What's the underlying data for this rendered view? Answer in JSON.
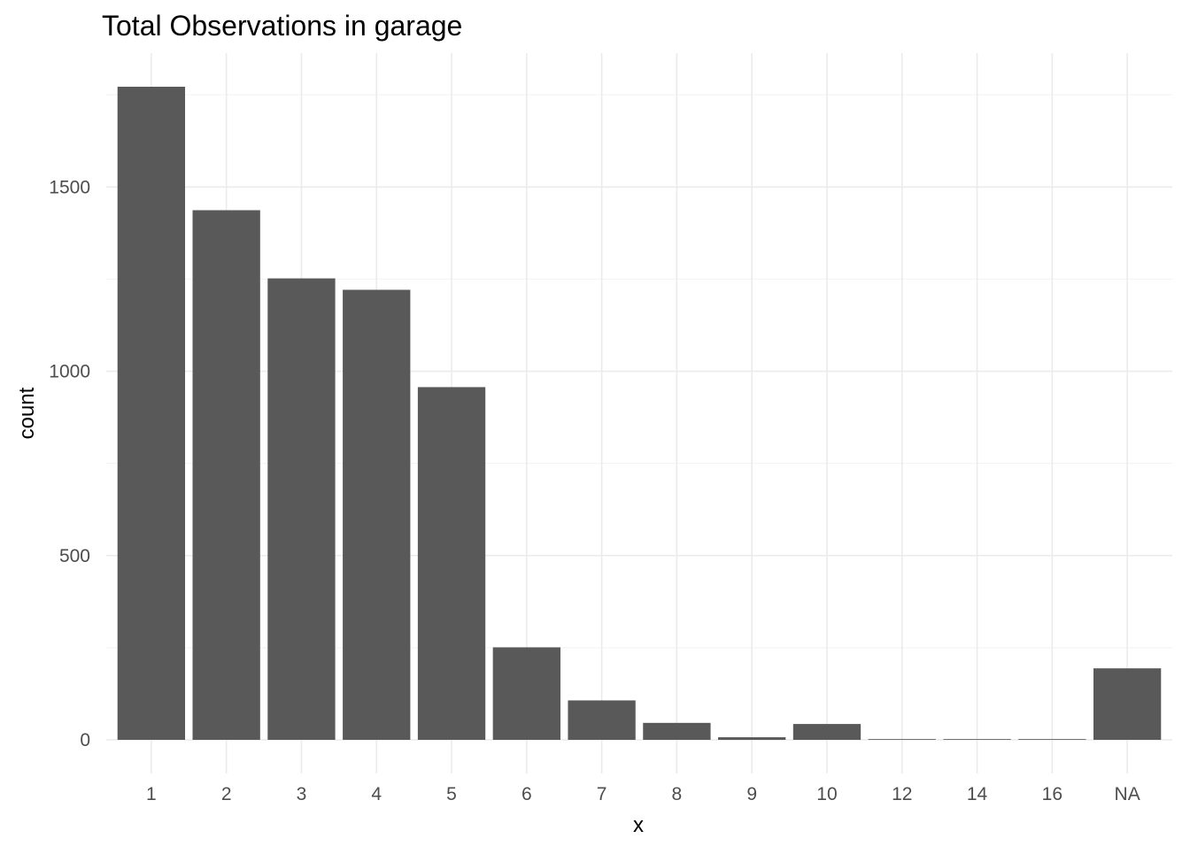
{
  "chart_data": {
    "type": "bar",
    "title": "Total Observations in  garage",
    "xlabel": "x",
    "ylabel": "count",
    "categories": [
      "1",
      "2",
      "3",
      "4",
      "5",
      "6",
      "7",
      "8",
      "9",
      "10",
      "12",
      "14",
      "16",
      "NA"
    ],
    "values": [
      1772,
      1437,
      1252,
      1221,
      957,
      251,
      107,
      46,
      7,
      43,
      2,
      2,
      2,
      194
    ],
    "ylim": [
      0,
      1772
    ],
    "yticks": [
      0,
      500,
      1000,
      1500
    ],
    "grid": true,
    "bar_color": "#595959",
    "background": "#ffffff"
  }
}
